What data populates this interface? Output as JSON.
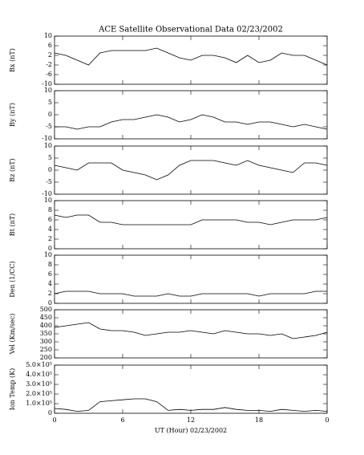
{
  "chart_data": [
    {
      "type": "line",
      "title": "ACE Satellite Observational Data   02/23/2002",
      "ylabel": "Bx (nT)",
      "color": "#000000",
      "x": [
        0,
        1,
        2,
        3,
        4,
        5,
        6,
        7,
        8,
        9,
        10,
        11,
        12,
        13,
        14,
        15,
        16,
        17,
        18,
        19,
        20,
        21,
        22,
        23,
        24
      ],
      "values": [
        3,
        2,
        0,
        -2,
        3,
        4,
        4,
        4,
        4,
        5,
        3,
        1,
        0,
        2,
        2,
        1,
        -1,
        2,
        -1,
        0,
        3,
        2,
        2,
        0,
        -2
      ],
      "xlim": [
        0,
        24
      ],
      "ylim": [
        -10,
        10
      ],
      "yticks": [
        -10,
        -6,
        -2,
        2,
        6,
        10
      ]
    },
    {
      "type": "line",
      "ylabel": "By (nT)",
      "color": "#000000",
      "x": [
        0,
        1,
        2,
        3,
        4,
        5,
        6,
        7,
        8,
        9,
        10,
        11,
        12,
        13,
        14,
        15,
        16,
        17,
        18,
        19,
        20,
        21,
        22,
        23,
        24
      ],
      "values": [
        -5,
        -5,
        -6,
        -5,
        -5,
        -3,
        -2,
        -2,
        -1,
        0,
        -1,
        -3,
        -2,
        0,
        -1,
        -3,
        -3,
        -4,
        -3,
        -3,
        -4,
        -5,
        -4,
        -5,
        -6
      ],
      "xlim": [
        0,
        24
      ],
      "ylim": [
        -10,
        10
      ],
      "yticks": [
        -10,
        -5,
        0,
        5,
        10
      ]
    },
    {
      "type": "line",
      "ylabel": "Bz (nT)",
      "color": "#000000",
      "x": [
        0,
        1,
        2,
        3,
        4,
        5,
        6,
        7,
        8,
        9,
        10,
        11,
        12,
        13,
        14,
        15,
        16,
        17,
        18,
        19,
        20,
        21,
        22,
        23,
        24
      ],
      "values": [
        2,
        1,
        0,
        3,
        3,
        3,
        0,
        -1,
        -2,
        -4,
        -2,
        2,
        4,
        4,
        4,
        3,
        2,
        4,
        2,
        1,
        0,
        -1,
        3,
        3,
        2
      ],
      "xlim": [
        0,
        24
      ],
      "ylim": [
        -10,
        10
      ],
      "yticks": [
        -10,
        -5,
        0,
        5,
        10
      ]
    },
    {
      "type": "line",
      "ylabel": "Bt (nT)",
      "color": "#000000",
      "x": [
        0,
        1,
        2,
        3,
        4,
        5,
        6,
        7,
        8,
        9,
        10,
        11,
        12,
        13,
        14,
        15,
        16,
        17,
        18,
        19,
        20,
        21,
        22,
        23,
        24
      ],
      "values": [
        7,
        6.5,
        7,
        7,
        5.5,
        5.5,
        5,
        5,
        5,
        5,
        5,
        5,
        5,
        6,
        6,
        6,
        6,
        5.5,
        5.5,
        5,
        5.5,
        6,
        6,
        6,
        6.5
      ],
      "xlim": [
        0,
        24
      ],
      "ylim": [
        0,
        10
      ],
      "yticks": [
        0,
        2,
        4,
        6,
        8,
        10
      ]
    },
    {
      "type": "line",
      "ylabel": "Den (1/CC)",
      "color": "#000000",
      "x": [
        0,
        1,
        2,
        3,
        4,
        5,
        6,
        7,
        8,
        9,
        10,
        11,
        12,
        13,
        14,
        15,
        16,
        17,
        18,
        19,
        20,
        21,
        22,
        23,
        24
      ],
      "values": [
        2,
        2.5,
        2.5,
        2.5,
        2,
        2,
        2,
        1.5,
        1.5,
        1.5,
        2,
        1.5,
        1.5,
        2,
        2,
        2,
        2,
        2,
        1.5,
        2,
        2,
        2,
        2,
        2.5,
        2.5
      ],
      "xlim": [
        0,
        24
      ],
      "ylim": [
        0,
        10
      ],
      "yticks": [
        0,
        2,
        4,
        6,
        8,
        10
      ]
    },
    {
      "type": "line",
      "ylabel": "Vel (Km/sec)",
      "color": "#000000",
      "x": [
        0,
        1,
        2,
        3,
        4,
        5,
        6,
        7,
        8,
        9,
        10,
        11,
        12,
        13,
        14,
        15,
        16,
        17,
        18,
        19,
        20,
        21,
        22,
        23,
        24
      ],
      "values": [
        390,
        400,
        410,
        420,
        380,
        370,
        370,
        360,
        340,
        350,
        360,
        360,
        370,
        360,
        350,
        370,
        360,
        350,
        350,
        340,
        350,
        320,
        330,
        340,
        360
      ],
      "xlim": [
        0,
        24
      ],
      "ylim": [
        200,
        500
      ],
      "yticks": [
        200,
        250,
        300,
        350,
        400,
        450,
        500
      ]
    },
    {
      "type": "line",
      "ylabel": "Ion Temp (K)",
      "xlabel": "UT (Hour)  02/23/2002",
      "color": "#000000",
      "x": [
        0,
        1,
        2,
        3,
        4,
        5,
        6,
        7,
        8,
        9,
        10,
        11,
        12,
        13,
        14,
        15,
        16,
        17,
        18,
        19,
        20,
        21,
        22,
        23,
        24
      ],
      "values": [
        50000,
        40000,
        20000,
        30000,
        120000,
        130000,
        140000,
        150000,
        150000,
        120000,
        30000,
        40000,
        30000,
        40000,
        40000,
        60000,
        40000,
        30000,
        30000,
        20000,
        40000,
        30000,
        20000,
        30000,
        20000
      ],
      "xlim": [
        0,
        24
      ],
      "ylim": [
        0,
        500000
      ],
      "yticks": [
        0,
        {
          "value": 100000,
          "label": "1.0×10⁵"
        },
        {
          "value": 200000,
          "label": "2.0×10⁵"
        },
        {
          "value": 300000,
          "label": "3.0×10⁵"
        },
        {
          "value": 400000,
          "label": "4.0×10⁵"
        },
        {
          "value": 500000,
          "label": "5.0×10⁵"
        }
      ],
      "xticks": [
        0,
        6,
        12,
        18,
        {
          "value": 24,
          "label": "0"
        }
      ]
    }
  ]
}
